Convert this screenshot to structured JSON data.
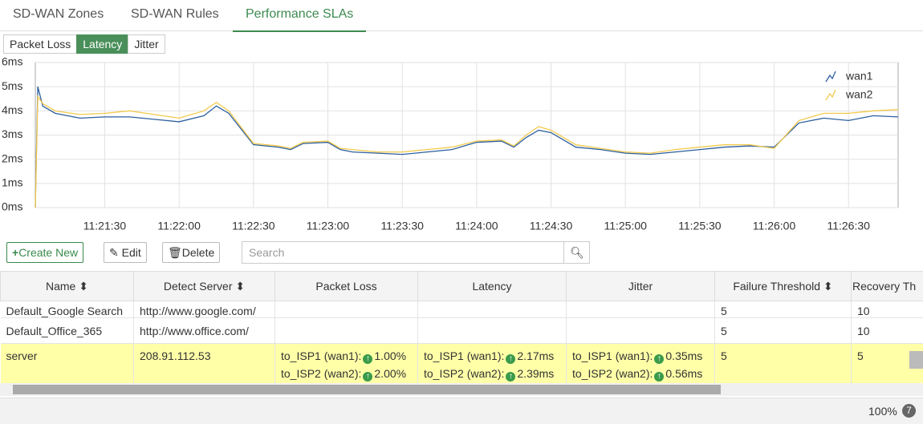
{
  "tabs": [
    "SD-WAN Zones",
    "SD-WAN Rules",
    "Performance SLAs"
  ],
  "metric_buttons": [
    "Packet Loss",
    "Latency",
    "Jitter"
  ],
  "chart_data": {
    "type": "line",
    "x": [
      "11:21:02",
      "11:21:03",
      "11:21:05",
      "11:21:10",
      "11:21:20",
      "11:21:30",
      "11:21:40",
      "11:21:50",
      "11:22:00",
      "11:22:10",
      "11:22:15",
      "11:22:20",
      "11:22:30",
      "11:22:40",
      "11:22:45",
      "11:22:50",
      "11:23:00",
      "11:23:05",
      "11:23:10",
      "11:23:20",
      "11:23:30",
      "11:23:40",
      "11:23:50",
      "11:24:00",
      "11:24:10",
      "11:24:15",
      "11:24:20",
      "11:24:25",
      "11:24:30",
      "11:24:40",
      "11:24:50",
      "11:25:00",
      "11:25:10",
      "11:25:20",
      "11:25:30",
      "11:25:40",
      "11:25:50",
      "11:26:00",
      "11:26:10",
      "11:26:20",
      "11:26:30",
      "11:26:40",
      "11:26:50"
    ],
    "series": [
      {
        "name": "wan1",
        "color": "#2d5f9e",
        "values": [
          0,
          5.0,
          4.2,
          3.9,
          3.7,
          3.75,
          3.75,
          3.65,
          3.55,
          3.8,
          4.2,
          3.9,
          2.6,
          2.5,
          2.4,
          2.65,
          2.7,
          2.4,
          2.3,
          2.25,
          2.2,
          2.3,
          2.4,
          2.7,
          2.75,
          2.5,
          2.9,
          3.2,
          3.1,
          2.5,
          2.4,
          2.25,
          2.2,
          2.3,
          2.4,
          2.5,
          2.55,
          2.5,
          3.5,
          3.7,
          3.6,
          3.8,
          3.75
        ]
      },
      {
        "name": "wan2",
        "color": "#f2c94c",
        "values": [
          0,
          4.6,
          4.3,
          4.0,
          3.85,
          3.9,
          4.0,
          3.85,
          3.7,
          4.0,
          4.35,
          4.0,
          2.65,
          2.55,
          2.45,
          2.7,
          2.75,
          2.45,
          2.4,
          2.3,
          2.3,
          2.4,
          2.5,
          2.75,
          2.8,
          2.55,
          3.0,
          3.35,
          3.2,
          2.6,
          2.45,
          2.3,
          2.25,
          2.4,
          2.5,
          2.6,
          2.6,
          2.45,
          3.6,
          3.9,
          3.9,
          4.0,
          4.05
        ]
      }
    ],
    "xlim": [
      "11:21:02",
      "11:26:50"
    ],
    "xticks": [
      "11:21:30",
      "11:22:00",
      "11:22:30",
      "11:23:00",
      "11:23:30",
      "11:24:00",
      "11:24:30",
      "11:25:00",
      "11:25:30",
      "11:26:00",
      "11:26:30"
    ],
    "ylim": [
      0,
      6
    ],
    "yticks": [
      {
        "value": 0,
        "label": "0ms"
      },
      {
        "value": 1,
        "label": "1ms"
      },
      {
        "value": 2,
        "label": "2ms"
      },
      {
        "value": 3,
        "label": "3ms"
      },
      {
        "value": 4,
        "label": "4ms"
      },
      {
        "value": 5,
        "label": "5ms"
      },
      {
        "value": 6,
        "label": "6ms"
      }
    ],
    "grid": true,
    "legend": "top-right"
  },
  "toolbar": {
    "create": "Create New",
    "edit": "Edit",
    "delete": "Delete",
    "search_placeholder": "Search"
  },
  "table": {
    "columns": [
      "Name",
      "Detect Server",
      "Packet Loss",
      "Latency",
      "Jitter",
      "Failure Threshold",
      "Recovery Th"
    ],
    "rows": [
      {
        "name": "Default_Google Search",
        "server": "http://www.google.com/",
        "failure": "5",
        "recovery": "10"
      },
      {
        "name": "Default_Office_365",
        "server": "http://www.office.com/",
        "failure": "5",
        "recovery": "10"
      },
      {
        "name": "server",
        "server": "208.91.112.53",
        "packet_loss": [
          {
            "link": "to_ISP1 (wan1):",
            "value": "1.00%"
          },
          {
            "link": "to_ISP2 (wan2):",
            "value": "2.00%"
          }
        ],
        "latency": [
          {
            "link": "to_ISP1 (wan1):",
            "value": "2.17ms"
          },
          {
            "link": "to_ISP2 (wan2):",
            "value": "2.39ms"
          }
        ],
        "jitter": [
          {
            "link": "to_ISP1 (wan1):",
            "value": "0.35ms"
          },
          {
            "link": "to_ISP2 (wan2):",
            "value": "0.56ms"
          }
        ],
        "failure": "5",
        "recovery": "5"
      }
    ]
  },
  "footer": {
    "zoom": "100%",
    "badge": "7"
  }
}
